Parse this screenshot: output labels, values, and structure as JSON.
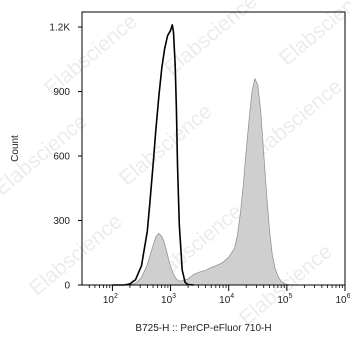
{
  "chart_data": {
    "type": "area",
    "title": "",
    "xlabel": "B725-H :: PerCP-eFluor 710-H",
    "ylabel": "Count",
    "x_scale": "log",
    "xlim": [
      30,
      1000000
    ],
    "ylim": [
      0,
      1270
    ],
    "x_ticks": [
      {
        "value": 100,
        "base": "10",
        "exp": "2"
      },
      {
        "value": 1000,
        "base": "10",
        "exp": "3"
      },
      {
        "value": 10000,
        "base": "10",
        "exp": "4"
      },
      {
        "value": 100000,
        "base": "10",
        "exp": "5"
      },
      {
        "value": 1000000,
        "base": "10",
        "exp": "6"
      }
    ],
    "y_ticks": [
      {
        "value": 0,
        "label": "0"
      },
      {
        "value": 300,
        "label": "300"
      },
      {
        "value": 600,
        "label": "600"
      },
      {
        "value": 900,
        "label": "900"
      },
      {
        "value": 1200,
        "label": "1.2K"
      }
    ],
    "watermark": "Elabscience",
    "series": [
      {
        "style": "filled",
        "color": "#cfcfcf",
        "edge_color": "#8a8a8a",
        "x": [
          100,
          178,
          251,
          316,
          398,
          447,
          501,
          562,
          631,
          708,
          776,
          851,
          933,
          1000,
          1122,
          1259,
          1413,
          1585,
          1995,
          2512,
          3162,
          3981,
          5012,
          6310,
          7943,
          10000,
          12589,
          14125,
          15849,
          17783,
          19953,
          22387,
          25119,
          28184,
          31623,
          35481,
          39811,
          44668,
          50119,
          56234,
          63096,
          70795,
          79433,
          89125,
          100000,
          112202,
          125893
        ],
        "y": [
          0,
          0,
          8,
          35,
          95,
          140,
          185,
          225,
          240,
          225,
          200,
          160,
          115,
          85,
          50,
          28,
          18,
          20,
          28,
          50,
          60,
          68,
          82,
          92,
          105,
          130,
          170,
          230,
          330,
          460,
          620,
          770,
          900,
          960,
          930,
          810,
          620,
          430,
          260,
          140,
          75,
          40,
          18,
          8,
          3,
          1,
          0
        ]
      },
      {
        "style": "line",
        "color": "#000000",
        "x": [
          100,
          158,
          200,
          251,
          316,
          398,
          447,
          501,
          562,
          631,
          708,
          794,
          891,
          1000,
          1072,
          1122,
          1202,
          1259,
          1318,
          1413,
          1585,
          1778,
          2000,
          2500
        ],
        "y": [
          0,
          0,
          5,
          25,
          90,
          250,
          400,
          560,
          730,
          880,
          1010,
          1100,
          1160,
          1185,
          1210,
          1175,
          1020,
          820,
          560,
          280,
          70,
          12,
          2,
          0
        ]
      }
    ]
  }
}
